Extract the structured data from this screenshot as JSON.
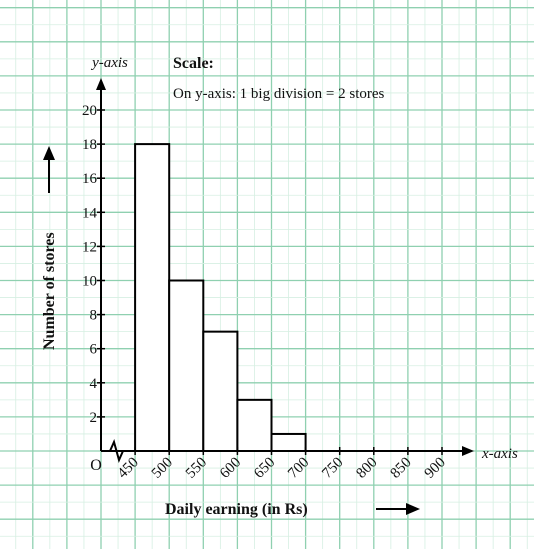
{
  "chart_data": {
    "type": "bar",
    "variant": "histogram",
    "title": "",
    "xlabel": "Daily earning (in Rs)",
    "ylabel": "Number of stores",
    "x_axis_tag": "x-axis",
    "y_axis_tag": "y-axis",
    "origin_label": "O",
    "scale_heading": "Scale:",
    "scale_text": "On y-axis: 1 big division = 2 stores",
    "bins": [
      {
        "from": 450,
        "to": 500,
        "value": 18
      },
      {
        "from": 500,
        "to": 550,
        "value": 10
      },
      {
        "from": 550,
        "to": 600,
        "value": 7
      },
      {
        "from": 600,
        "to": 650,
        "value": 3
      },
      {
        "from": 650,
        "to": 700,
        "value": 1
      }
    ],
    "x_ticks": [
      450,
      500,
      550,
      600,
      650,
      700,
      750,
      800,
      850,
      900
    ],
    "y_ticks": [
      2,
      4,
      6,
      8,
      10,
      12,
      14,
      16,
      18,
      20
    ],
    "xlim": [
      400,
      950
    ],
    "ylim": [
      0,
      20
    ],
    "axis_break_on_x": true,
    "grid": true,
    "colors": {
      "grid_major": "#8fd0b0",
      "grid_minor": "#d6efe2",
      "bar_fill": "#ffffff",
      "bar_stroke": "#000000"
    }
  }
}
